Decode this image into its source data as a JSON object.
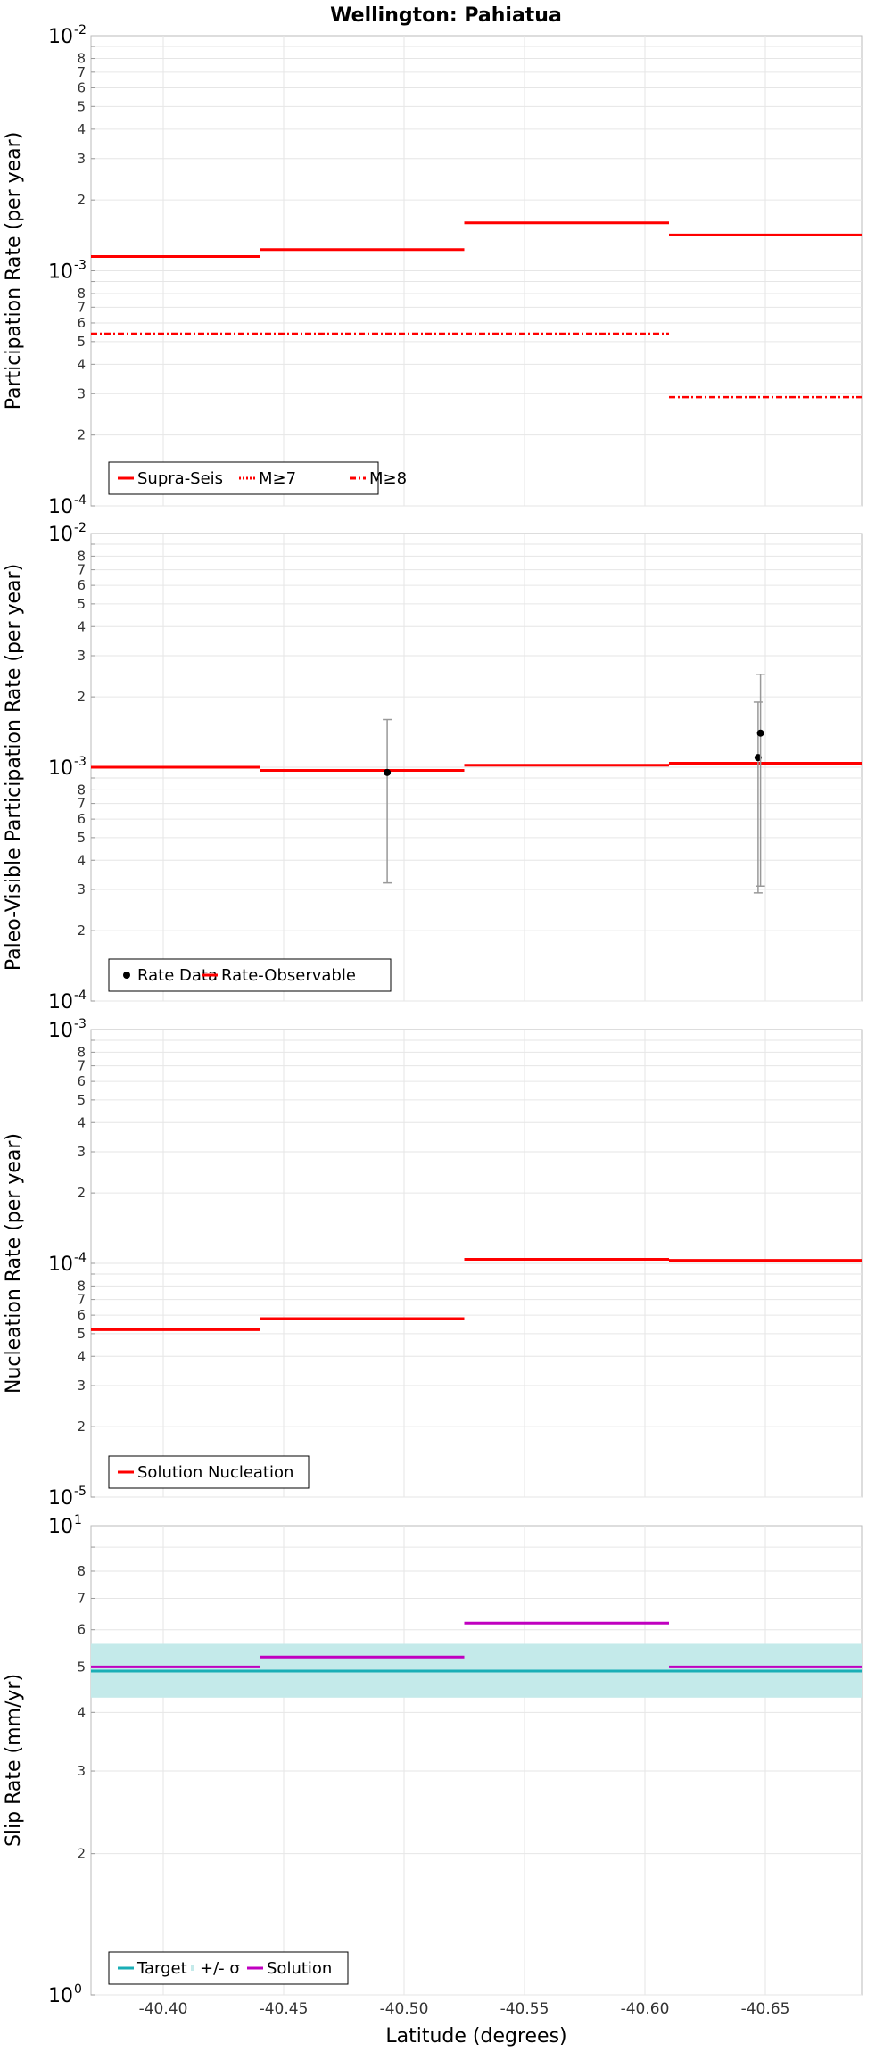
{
  "title": "Wellington: Pahiatua",
  "xlabel": "Latitude (degrees)",
  "x_ticks": [
    "-40.40",
    "-40.45",
    "-40.50",
    "-40.55",
    "-40.60",
    "-40.65"
  ],
  "colors": {
    "supra": "#ff0000",
    "target": "#1aaeb6",
    "sigma_band": "#c4eaea",
    "solution": "#c000c0",
    "data_point": "#000000",
    "error_bar": "#999999",
    "grid": "#e6e6e6",
    "frame": "#bbbbbb"
  },
  "chart_data": [
    {
      "type": "line",
      "name": "participation",
      "ylabel": "Participation Rate (per year)",
      "yscale": "log",
      "ylim": [
        0.0001,
        0.01
      ],
      "xlim": [
        -40.37,
        -40.69
      ],
      "x_reversed": true,
      "decade_labels": [
        {
          "value": 0.01,
          "base": "10",
          "exp": "-2"
        },
        {
          "value": 0.001,
          "base": "10",
          "exp": "-3"
        },
        {
          "value": 0.0001,
          "base": "10",
          "exp": "-4"
        }
      ],
      "series": [
        {
          "name": "Supra-Seis",
          "style": "solid",
          "segments": [
            {
              "x": [
                -40.37,
                -40.44
              ],
              "y": 0.00115
            },
            {
              "x": [
                -40.44,
                -40.525
              ],
              "y": 0.00123
            },
            {
              "x": [
                -40.525,
                -40.61
              ],
              "y": 0.0016
            },
            {
              "x": [
                -40.61,
                -40.69
              ],
              "y": 0.00142
            }
          ]
        },
        {
          "name": "M≥7",
          "style": "dotted",
          "segments": [
            {
              "x": [
                -40.37,
                -40.44
              ],
              "y": 0.00115
            },
            {
              "x": [
                -40.44,
                -40.525
              ],
              "y": 0.00123
            },
            {
              "x": [
                -40.525,
                -40.61
              ],
              "y": 0.0016
            },
            {
              "x": [
                -40.61,
                -40.69
              ],
              "y": 0.00142
            }
          ]
        },
        {
          "name": "M≥8",
          "style": "dashdot",
          "segments": [
            {
              "x": [
                -40.37,
                -40.61
              ],
              "y": 0.00054
            },
            {
              "x": [
                -40.61,
                -40.69
              ],
              "y": 0.00029
            }
          ]
        }
      ],
      "legend": [
        "Supra-Seis",
        "M≥7",
        "M≥8"
      ]
    },
    {
      "type": "line",
      "name": "paleo",
      "ylabel": "Paleo-Visible Participation Rate (per year)",
      "yscale": "log",
      "ylim": [
        0.0001,
        0.01
      ],
      "xlim": [
        -40.37,
        -40.69
      ],
      "x_reversed": true,
      "decade_labels": [
        {
          "value": 0.01,
          "base": "10",
          "exp": "-2"
        },
        {
          "value": 0.001,
          "base": "10",
          "exp": "-3"
        },
        {
          "value": 0.0001,
          "base": "10",
          "exp": "-4"
        }
      ],
      "series": [
        {
          "name": "Rate-Observable",
          "style": "solid",
          "segments": [
            {
              "x": [
                -40.37,
                -40.44
              ],
              "y": 0.001
            },
            {
              "x": [
                -40.44,
                -40.525
              ],
              "y": 0.00097
            },
            {
              "x": [
                -40.525,
                -40.61
              ],
              "y": 0.00102
            },
            {
              "x": [
                -40.61,
                -40.69
              ],
              "y": 0.00104
            }
          ]
        }
      ],
      "points": [
        {
          "name": "Rate Data",
          "x": -40.493,
          "y": 0.00095,
          "lo": 0.00032,
          "hi": 0.0016
        },
        {
          "name": "Rate Data",
          "x": -40.647,
          "y": 0.0011,
          "lo": 0.00029,
          "hi": 0.0019
        },
        {
          "name": "Rate Data",
          "x": -40.648,
          "y": 0.0014,
          "lo": 0.00031,
          "hi": 0.0025
        }
      ],
      "legend": [
        "Rate Data",
        "Rate-Observable"
      ]
    },
    {
      "type": "line",
      "name": "nucleation",
      "ylabel": "Nucleation Rate (per year)",
      "yscale": "log",
      "ylim": [
        1e-05,
        0.001
      ],
      "xlim": [
        -40.37,
        -40.69
      ],
      "x_reversed": true,
      "decade_labels": [
        {
          "value": 0.001,
          "base": "10",
          "exp": "-3"
        },
        {
          "value": 0.0001,
          "base": "10",
          "exp": "-4"
        },
        {
          "value": 1e-05,
          "base": "10",
          "exp": "-5"
        }
      ],
      "series": [
        {
          "name": "Solution Nucleation",
          "style": "solid",
          "segments": [
            {
              "x": [
                -40.37,
                -40.44
              ],
              "y": 5.2e-05
            },
            {
              "x": [
                -40.44,
                -40.525
              ],
              "y": 5.8e-05
            },
            {
              "x": [
                -40.525,
                -40.61
              ],
              "y": 0.000104
            },
            {
              "x": [
                -40.61,
                -40.69
              ],
              "y": 0.000103
            }
          ]
        }
      ],
      "legend": [
        "Solution Nucleation"
      ]
    },
    {
      "type": "line",
      "name": "slip",
      "ylabel": "Slip Rate (mm/yr)",
      "yscale": "log",
      "ylim": [
        1,
        10
      ],
      "xlim": [
        -40.37,
        -40.69
      ],
      "x_reversed": true,
      "decade_labels": [
        {
          "value": 10,
          "base": "10",
          "exp": "1"
        },
        {
          "value": 1,
          "base": "10",
          "exp": "0"
        }
      ],
      "band": {
        "name": "+/- σ",
        "lo": 4.3,
        "hi": 5.6
      },
      "series": [
        {
          "name": "Target",
          "style": "solid",
          "segments": [
            {
              "x": [
                -40.37,
                -40.69
              ],
              "y": 4.9
            }
          ]
        },
        {
          "name": "Solution",
          "style": "solid",
          "segments": [
            {
              "x": [
                -40.37,
                -40.44
              ],
              "y": 5.0
            },
            {
              "x": [
                -40.44,
                -40.525
              ],
              "y": 5.25
            },
            {
              "x": [
                -40.525,
                -40.61
              ],
              "y": 6.2
            },
            {
              "x": [
                -40.61,
                -40.69
              ],
              "y": 5.0
            }
          ]
        }
      ],
      "legend": [
        "Target",
        "+/- σ",
        "Solution"
      ]
    }
  ]
}
